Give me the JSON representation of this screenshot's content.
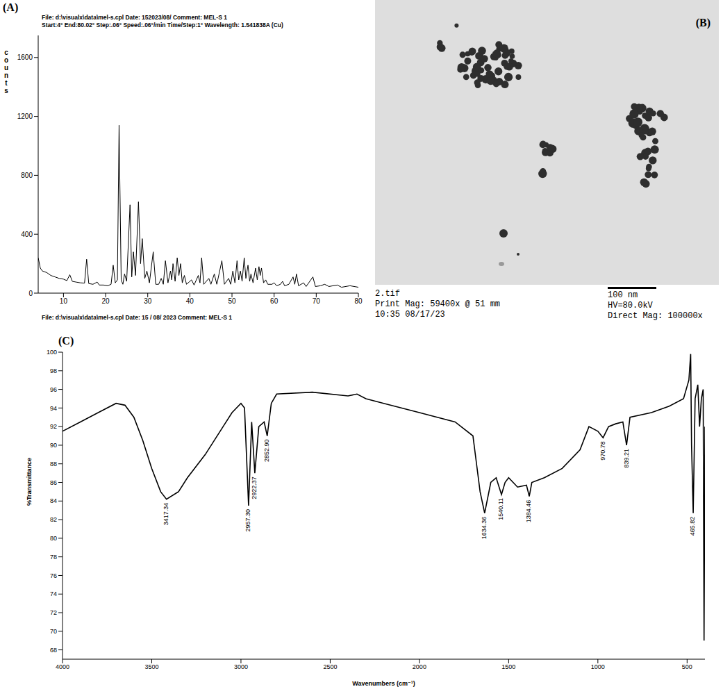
{
  "chart_data": [
    {
      "panel": "(A)",
      "type": "line",
      "header": [
        "File: d:\\visualx\\data\\mel-s.cpl Date: 152023/08/ Comment: MEL-S 1",
        "Start:4° End:80.02° Step:.06° Speed:.06°/min Time/Step:1° Wavelength: 1.541838A (Cu)"
      ],
      "footer": "File: d:\\visualx\\data\\mel-s.cpl Date: 15 / 08/ 2023 Comment: MEL-S 1",
      "y_label": "counts",
      "color": "#000000",
      "x": [
        4,
        4.5,
        5,
        6,
        7,
        8,
        9,
        10,
        10.8,
        11.5,
        12.1,
        13,
        14,
        15,
        15.5,
        16,
        17,
        18,
        18.5,
        19.5,
        20.5,
        21.3,
        21.8,
        22.3,
        22.8,
        23.2,
        23.7,
        24.1,
        24.5,
        25,
        25.8,
        26.2,
        26.6,
        27.1,
        27.8,
        28.3,
        28.7,
        29.3,
        29.8,
        30.4,
        31.3,
        31.9,
        32.6,
        33.2,
        33.7,
        34.2,
        34.8,
        35.4,
        35.7,
        36,
        36.5,
        37,
        37.4,
        37.8,
        38.2,
        38.7,
        39.2,
        40.4,
        41,
        42,
        42.4,
        42.8,
        43.3,
        44.5,
        45,
        45.8,
        46.4,
        47.6,
        48.2,
        49.2,
        49.7,
        50.2,
        50.7,
        51.2,
        51.6,
        52,
        52.4,
        52.9,
        53.3,
        53.8,
        54.2,
        54.5,
        55,
        55.6,
        56,
        56.4,
        56.7,
        57,
        57.5,
        58,
        58.5,
        59.5,
        60,
        60.6,
        61.5,
        62,
        62.5,
        63.5,
        64.5,
        64.9,
        65.3,
        65.8,
        67,
        67.6,
        69.2,
        69.8,
        71,
        72,
        73,
        75,
        76,
        78,
        80
      ],
      "values": [
        240,
        170,
        150,
        140,
        120,
        110,
        100,
        95,
        85,
        125,
        80,
        75,
        70,
        68,
        230,
        65,
        60,
        75,
        55,
        55,
        50,
        60,
        190,
        70,
        90,
        1140,
        90,
        60,
        130,
        80,
        600,
        110,
        280,
        120,
        620,
        200,
        370,
        100,
        150,
        70,
        280,
        60,
        60,
        100,
        60,
        220,
        70,
        150,
        90,
        200,
        80,
        240,
        120,
        200,
        70,
        120,
        60,
        90,
        55,
        120,
        70,
        240,
        60,
        100,
        60,
        130,
        60,
        220,
        60,
        100,
        60,
        150,
        70,
        220,
        90,
        150,
        80,
        240,
        100,
        190,
        80,
        130,
        70,
        170,
        90,
        180,
        120,
        170,
        70,
        90,
        60,
        60,
        70,
        50,
        60,
        80,
        50,
        60,
        110,
        60,
        130,
        50,
        70,
        45,
        110,
        45,
        50,
        60,
        45,
        55,
        40,
        50,
        40
      ],
      "xlim": [
        4,
        80
      ],
      "xticks": [
        10,
        20,
        30,
        40,
        50,
        60,
        70,
        80
      ],
      "ylim": [
        0,
        1750
      ],
      "yticks": [
        0,
        400,
        800,
        1200,
        1600
      ]
    },
    {
      "panel": "(C)",
      "type": "line",
      "x_label": "Wavenumbers (cm⁻¹)",
      "y_label": "%Transmittance",
      "color": "#000000",
      "x": [
        4000,
        3900,
        3800,
        3700,
        3650,
        3600,
        3550,
        3500,
        3450,
        3417.34,
        3350,
        3300,
        3200,
        3100,
        3050,
        3000,
        2980,
        2957.3,
        2940,
        2922.37,
        2900,
        2870,
        2852.9,
        2830,
        2800,
        2600,
        2400,
        2350,
        2300,
        2200,
        2000,
        1800,
        1700,
        1680,
        1660,
        1634.36,
        1600,
        1570,
        1540.11,
        1520,
        1500,
        1450,
        1400,
        1384.46,
        1370,
        1300,
        1200,
        1100,
        1050,
        1000,
        970.78,
        940,
        900,
        860,
        839.21,
        820,
        700,
        600,
        520,
        490,
        480,
        475,
        465.82,
        455,
        440,
        430,
        420,
        410,
        405,
        400
      ],
      "values": [
        91.5,
        92.5,
        93.5,
        94.5,
        94.3,
        93,
        90.5,
        87.5,
        85,
        84.2,
        85,
        86.5,
        89,
        92,
        93.5,
        94.5,
        94,
        83.5,
        92.5,
        87,
        92,
        92.5,
        91,
        94.5,
        95.5,
        95.7,
        95.3,
        95.5,
        95,
        94.5,
        93.5,
        92.5,
        91,
        88,
        85,
        82.7,
        86,
        86.5,
        84.7,
        86,
        86.5,
        85.5,
        85.7,
        84.5,
        86,
        86.5,
        87.5,
        89.5,
        92,
        91.5,
        90.8,
        92,
        92.3,
        92.5,
        90,
        93,
        93.5,
        94.2,
        95,
        97,
        99.8,
        90,
        82.7,
        95,
        96.5,
        92,
        95,
        96,
        69,
        92
      ],
      "xlim": [
        4000,
        400
      ],
      "xticks": [
        4000,
        3500,
        3000,
        2500,
        2000,
        1500,
        1000,
        500
      ],
      "ylim": [
        67,
        100
      ],
      "yticks": [
        68,
        70,
        72,
        74,
        76,
        78,
        80,
        82,
        84,
        86,
        88,
        90,
        92,
        94,
        96,
        98,
        100
      ],
      "annotations": [
        {
          "x": 3417.34,
          "label": "3417.34"
        },
        {
          "x": 2957.3,
          "label": "2957.30"
        },
        {
          "x": 2922.37,
          "label": "2922.37"
        },
        {
          "x": 2852.9,
          "label": "2852.90"
        },
        {
          "x": 1634.36,
          "label": "1634.36"
        },
        {
          "x": 1540.11,
          "label": "1540.11"
        },
        {
          "x": 1384.46,
          "label": "1384.46"
        },
        {
          "x": 970.78,
          "label": "970.78"
        },
        {
          "x": 839.21,
          "label": "839.21"
        },
        {
          "x": 465.82,
          "label": "465.82"
        }
      ]
    }
  ],
  "image_panel": {
    "panel": "(B)",
    "caption_left": [
      "2.tif",
      "Print Mag: 59400x @ 51 mm",
      "10:35 08/17/23"
    ],
    "scale_bar": "100 nm",
    "caption_right": [
      "HV=80.0kV",
      "Direct Mag: 100000x"
    ]
  }
}
